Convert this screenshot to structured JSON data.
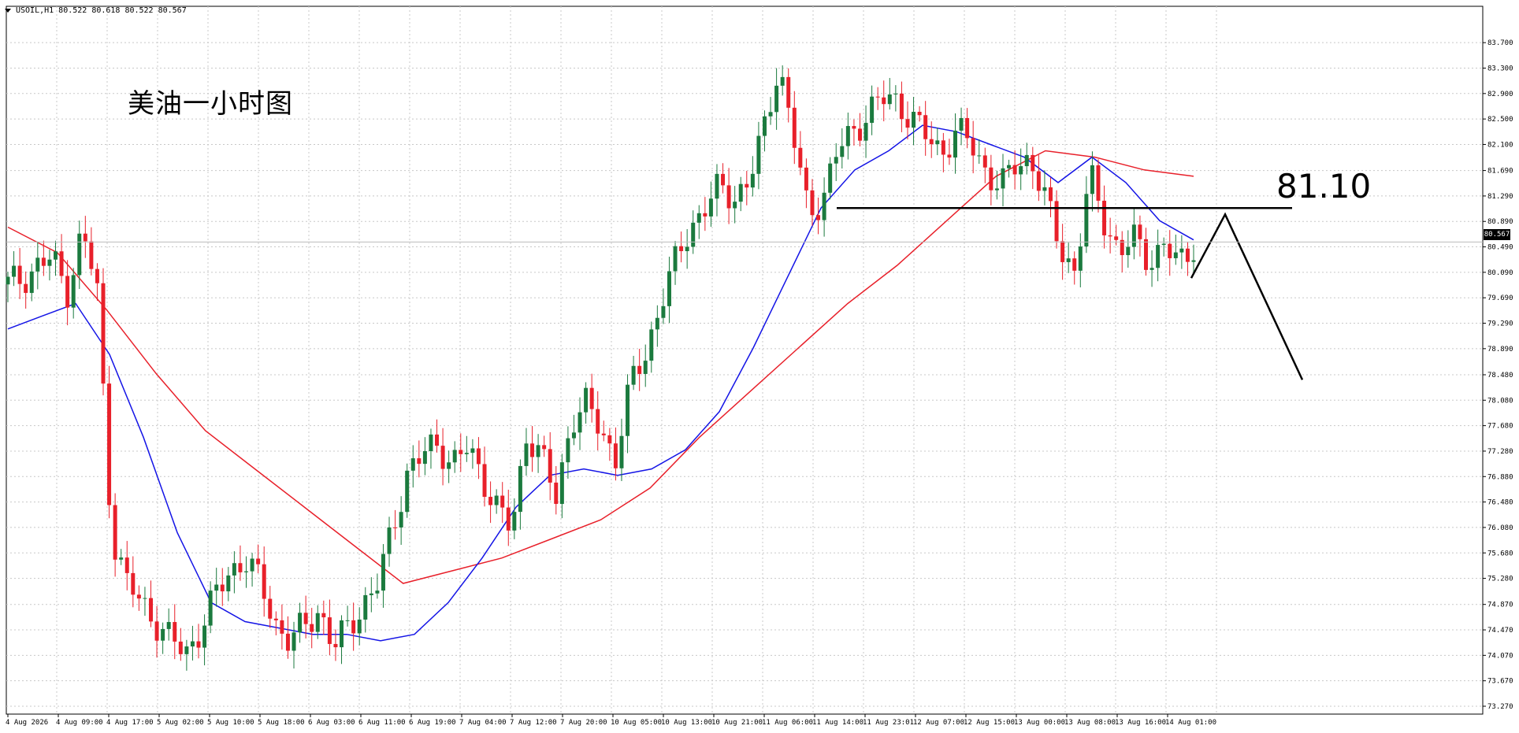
{
  "header": {
    "symbol": "USOIL,H1",
    "ohlc": "80.522 80.618 80.522 80.567"
  },
  "annotation": {
    "title": "美油一小时图",
    "level": "81.10"
  },
  "current_price": "80.567",
  "colors": {
    "bull": "#1b7a3e",
    "bear": "#e8202a",
    "ma_fast": "#1414e6",
    "ma_slow": "#e8202a",
    "grid": "#c8c8c8",
    "line": "#000000"
  },
  "chart_data": {
    "type": "candlestick",
    "symbol": "USOIL",
    "timeframe": "H1",
    "ylim": [
      73.27,
      83.9
    ],
    "y_ticks": [
      "83.700",
      "83.300",
      "82.900",
      "82.500",
      "82.100",
      "81.690",
      "81.290",
      "80.890",
      "80.490",
      "80.090",
      "79.690",
      "79.290",
      "78.890",
      "78.480",
      "78.080",
      "77.680",
      "77.280",
      "76.880",
      "76.480",
      "76.080",
      "75.680",
      "75.280",
      "74.870",
      "74.470",
      "74.070",
      "73.670",
      "73.270"
    ],
    "x_labels": [
      "4 Aug 2026",
      "4 Aug 09:00",
      "4 Aug 17:00",
      "5 Aug 02:00",
      "5 Aug 10:00",
      "5 Aug 18:00",
      "6 Aug 03:00",
      "6 Aug 11:00",
      "6 Aug 19:00",
      "7 Aug 04:00",
      "7 Aug 12:00",
      "7 Aug 20:00",
      "10 Aug 05:00",
      "10 Aug 13:00",
      "10 Aug 21:00",
      "11 Aug 06:00",
      "11 Aug 14:00",
      "11 Aug 23:01",
      "12 Aug 07:00",
      "12 Aug 15:00",
      "13 Aug 00:00",
      "13 Aug 08:00",
      "13 Aug 16:00",
      "14 Aug 01:00"
    ],
    "close_path": [
      79.9,
      80.0,
      80.2,
      80.3,
      79.8,
      80.7,
      79.9,
      76.0,
      75.2,
      74.9,
      74.6,
      74.3,
      74.1,
      74.5,
      75.0,
      75.4,
      75.6,
      75.2,
      74.6,
      74.3,
      74.5,
      74.8,
      74.2,
      74.5,
      74.9,
      75.2,
      76.1,
      77.0,
      77.2,
      77.4,
      77.1,
      77.3,
      76.9,
      76.4,
      76.0,
      77.6,
      77.2,
      76.5,
      77.8,
      78.0,
      77.6,
      77.2,
      78.3,
      78.8,
      79.6,
      80.2,
      80.8,
      81.1,
      81.4,
      81.3,
      81.5,
      82.3,
      83.4,
      82.2,
      81.0,
      81.3,
      82.0,
      82.3,
      82.6,
      82.8,
      82.8,
      82.5,
      82.2,
      82.0,
      82.3,
      82.1,
      81.7,
      81.4,
      81.8,
      81.9,
      81.2,
      80.5,
      80.1,
      81.6,
      80.9,
      80.4,
      80.6,
      80.3,
      80.5,
      80.2,
      80.55
    ],
    "ma_fast": {
      "name": "",
      "values": [
        79.2,
        79.4,
        79.6,
        78.8,
        77.5,
        76.0,
        74.9,
        74.6,
        74.5,
        74.4,
        74.4,
        74.3,
        74.4,
        74.9,
        75.6,
        76.4,
        76.9,
        77.0,
        76.9,
        77.0,
        77.3,
        77.9,
        78.9,
        80.0,
        81.1,
        81.7,
        82.0,
        82.4,
        82.3,
        82.1,
        81.9,
        81.5,
        81.9,
        81.5,
        80.9,
        80.6
      ]
    },
    "ma_slow": {
      "name": "",
      "values": [
        80.8,
        80.4,
        79.5,
        78.5,
        77.6,
        77.0,
        76.4,
        75.8,
        75.2,
        75.4,
        75.6,
        75.9,
        76.2,
        76.7,
        77.5,
        78.2,
        78.9,
        79.6,
        80.2,
        80.9,
        81.6,
        82.0,
        81.9,
        81.7,
        81.6
      ]
    },
    "hline": 81.1,
    "projection": [
      [
        0,
        80.0
      ],
      [
        1,
        81.0
      ],
      [
        2,
        78.4
      ]
    ]
  }
}
